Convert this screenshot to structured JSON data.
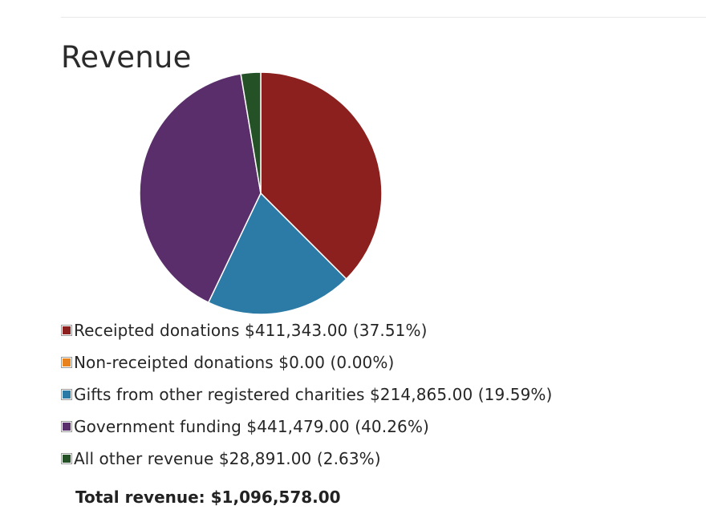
{
  "page": {
    "title": "Revenue"
  },
  "chart_data": {
    "type": "pie",
    "title": "Revenue",
    "slices": [
      {
        "label": "Receipted donations",
        "value": 411343.0,
        "amount_text": "$411,343.00",
        "percent": 37.51,
        "percent_text": "(37.51%)",
        "color": "#8b201e"
      },
      {
        "label": "Non-receipted donations",
        "value": 0.0,
        "amount_text": "$0.00",
        "percent": 0.0,
        "percent_text": "(0.00%)",
        "color": "#e8821c"
      },
      {
        "label": "Gifts from other registered charities",
        "value": 214865.0,
        "amount_text": "$214,865.00",
        "percent": 19.59,
        "percent_text": "(19.59%)",
        "color": "#2b7ba6"
      },
      {
        "label": "Government funding",
        "value": 441479.0,
        "amount_text": "$441,479.00",
        "percent": 40.26,
        "percent_text": "(40.26%)",
        "color": "#5a2e6b"
      },
      {
        "label": "All other revenue",
        "value": 28891.0,
        "amount_text": "$28,891.00",
        "percent": 2.63,
        "percent_text": "(2.63%)",
        "color": "#245226"
      }
    ],
    "legend_position": "bottom-left"
  },
  "summary": {
    "total_label": "Total revenue:",
    "total_value": "$1,096,578.00"
  }
}
